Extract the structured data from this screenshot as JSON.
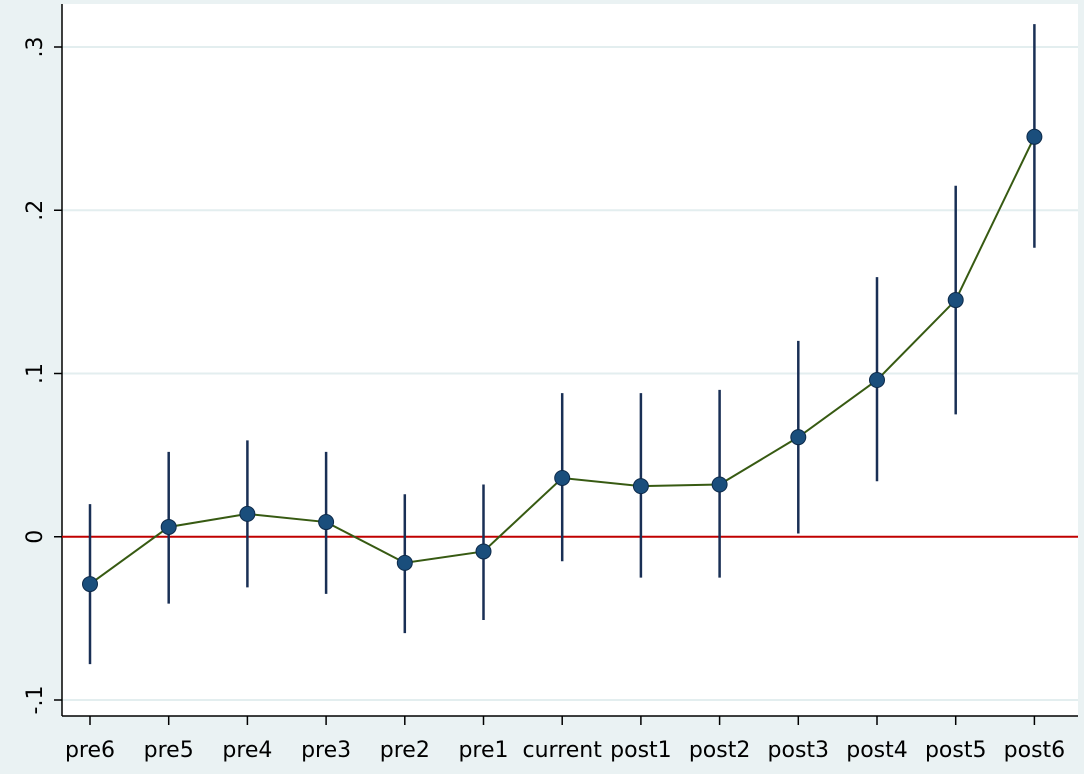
{
  "chart_data": {
    "type": "scatter",
    "title": "",
    "xlabel": "",
    "ylabel": "",
    "categories": [
      "pre6",
      "pre5",
      "pre4",
      "pre3",
      "pre2",
      "pre1",
      "current",
      "post1",
      "post2",
      "post3",
      "post4",
      "post5",
      "post6"
    ],
    "series": [
      {
        "values": [
          -0.029,
          0.006,
          0.014,
          0.009,
          -0.016,
          -0.009,
          0.036,
          0.031,
          0.032,
          0.061,
          0.096,
          0.145,
          0.245
        ],
        "ci_lower": [
          -0.078,
          -0.041,
          -0.031,
          -0.035,
          -0.059,
          -0.051,
          -0.015,
          -0.025,
          -0.025,
          0.002,
          0.034,
          0.075,
          0.177
        ],
        "ci_upper": [
          0.02,
          0.052,
          0.059,
          0.052,
          0.026,
          0.032,
          0.088,
          0.088,
          0.09,
          0.12,
          0.159,
          0.215,
          0.314
        ]
      }
    ],
    "y_ticks": [
      -0.1,
      0,
      0.1,
      0.2,
      0.3
    ],
    "y_tick_labels": [
      "-.1",
      "0",
      ".1",
      ".2",
      ".3"
    ],
    "ylim": [
      -0.105,
      0.32
    ],
    "reference_line": 0,
    "grid": true,
    "colors": {
      "background": "#eaf2f3",
      "plot_background": "#ffffff",
      "grid": "#e3eeef",
      "marker": "#1a4e7c",
      "marker_edge": "#0d2a4a",
      "connect_line": "#375a12",
      "ci": "#192f55",
      "reference": "#c00000",
      "axis": "#000000"
    }
  }
}
